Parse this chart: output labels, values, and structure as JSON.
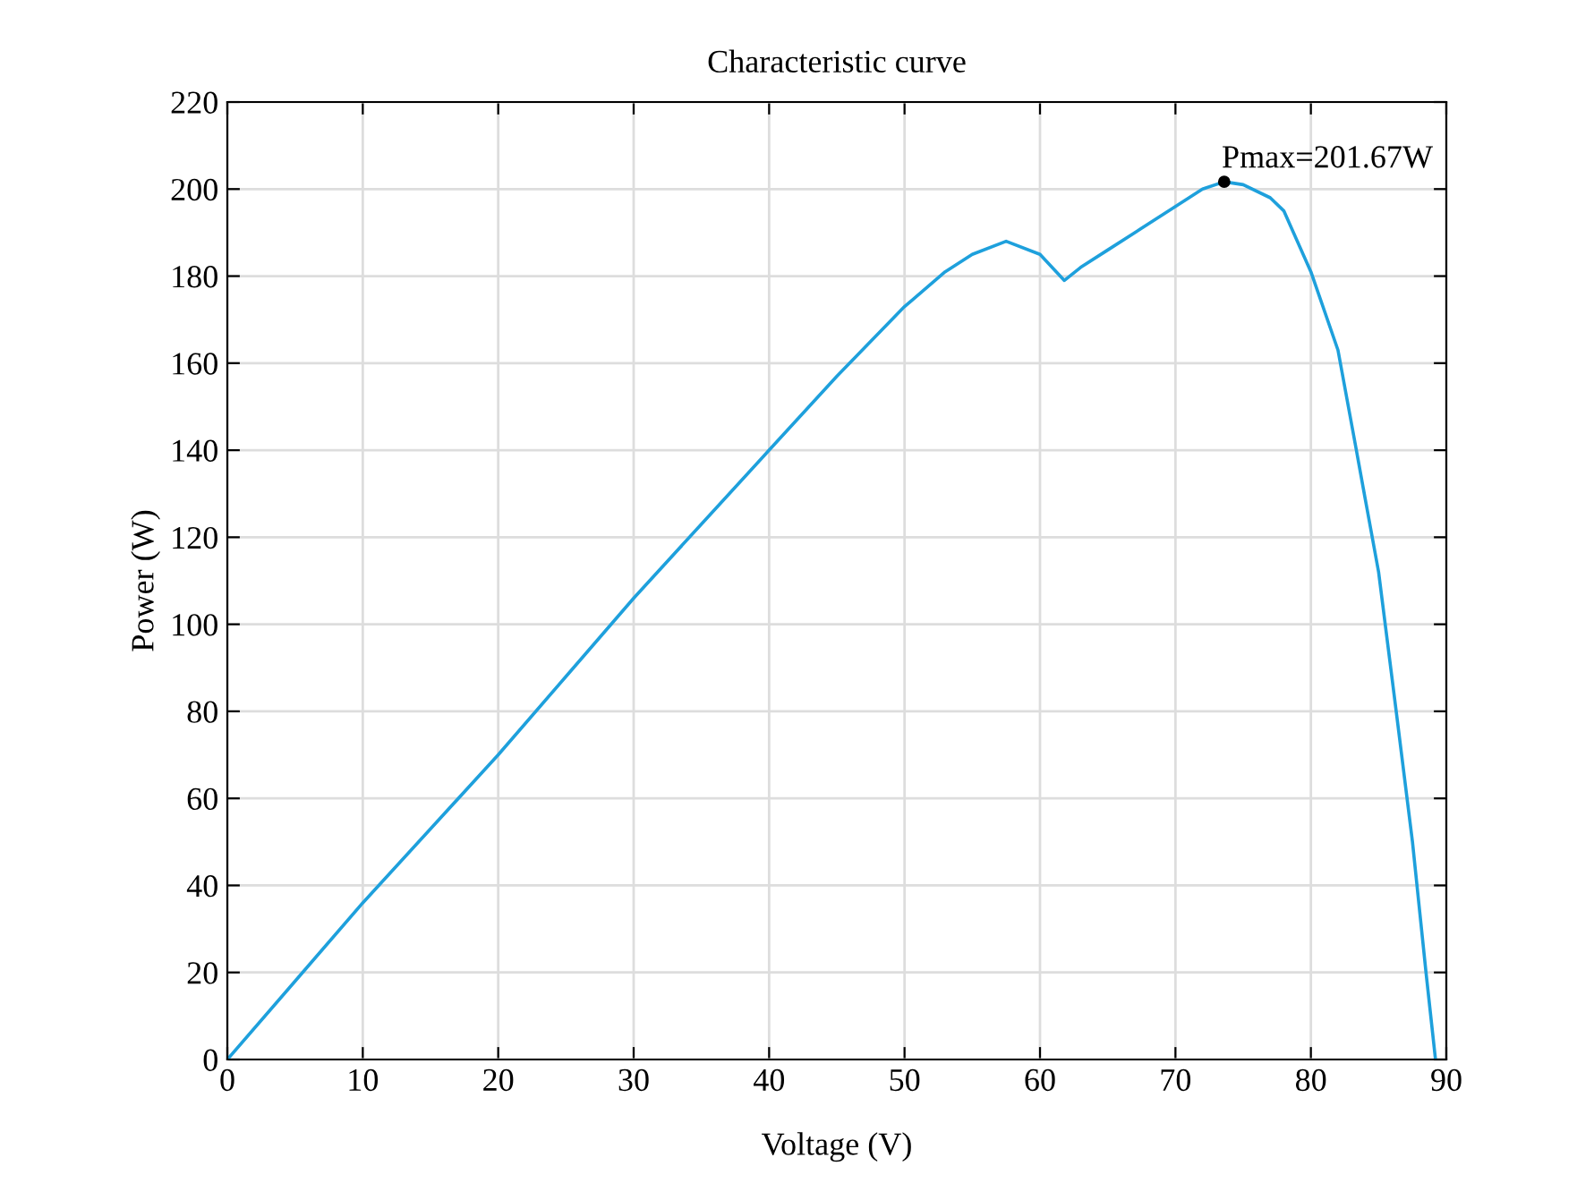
{
  "chart_data": {
    "type": "line",
    "title": "Characteristic curve",
    "xlabel": "Voltage (V)",
    "ylabel": "Power (W)",
    "x": [
      0,
      5,
      10,
      15,
      20,
      25,
      30,
      35,
      40,
      45,
      50,
      53,
      55,
      57.5,
      60,
      61.8,
      63,
      65,
      67,
      70,
      72,
      73.6,
      75,
      77,
      78,
      80,
      82,
      83.3,
      84,
      85,
      86.3,
      87.5,
      88.5,
      89.2
    ],
    "series": [
      {
        "color": "#1ea0dc",
        "values": [
          0,
          18,
          36,
          53,
          70,
          88,
          106,
          123,
          140,
          157,
          173,
          181,
          185,
          188,
          185,
          179,
          182,
          186,
          190,
          196,
          200,
          201.67,
          201,
          198,
          195,
          181,
          163,
          141,
          129,
          112,
          80,
          50,
          20,
          0
        ]
      }
    ],
    "annotations": [
      {
        "text": "Pmax=201.67W",
        "x": 73.6,
        "y": 201.67
      }
    ],
    "xlim": [
      0,
      90
    ],
    "xticks": [
      0,
      10,
      20,
      30,
      40,
      50,
      60,
      70,
      80,
      90
    ],
    "ylim": [
      0,
      220
    ],
    "yticks": [
      0,
      20,
      40,
      60,
      80,
      100,
      120,
      140,
      160,
      180,
      200,
      220
    ],
    "grid": true,
    "marker": "none",
    "line_style": "solid"
  }
}
